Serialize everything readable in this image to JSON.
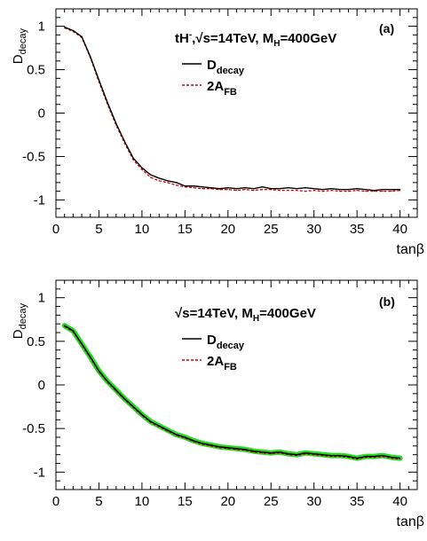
{
  "chart_data": [
    {
      "type": "line",
      "panel_label": "(a)",
      "annotation": {
        "main": "tH",
        "sup": "-",
        "mid": ",√s=14TeV, M",
        "sub": "H",
        "tail": "=400GeV"
      },
      "ylabel": {
        "main": "D",
        "sub": "decay"
      },
      "xlabel": "tanβ",
      "xlim": [
        0,
        42
      ],
      "ylim": [
        -1.2,
        1.2
      ],
      "xticks": [
        0,
        5,
        10,
        15,
        20,
        25,
        30,
        35,
        40
      ],
      "xtick_labels": [
        "0",
        "5",
        "10",
        "15",
        "20",
        "25",
        "30",
        "35",
        "40"
      ],
      "yticks": [
        1,
        0.5,
        0,
        -0.5,
        -1
      ],
      "ytick_labels": [
        "1",
        "0.5",
        "0",
        "-0.5",
        "-1"
      ],
      "legend": [
        {
          "main": "D",
          "sub": "decay",
          "style": "solid",
          "color": "#000000"
        },
        {
          "main": "2A",
          "sub": "FB",
          "style": "dashed",
          "color": "#cc0000"
        }
      ],
      "x": [
        1,
        2,
        3,
        4,
        5,
        6,
        7,
        8,
        9,
        10,
        11,
        12,
        13,
        14,
        15,
        16,
        17,
        18,
        19,
        20,
        21,
        22,
        23,
        24,
        25,
        26,
        27,
        28,
        29,
        30,
        31,
        32,
        33,
        34,
        35,
        36,
        37,
        38,
        39,
        40
      ],
      "series": [
        {
          "style": "solid",
          "color": "#000000",
          "values": [
            0.99,
            0.95,
            0.88,
            0.65,
            0.38,
            0.12,
            -0.12,
            -0.33,
            -0.52,
            -0.63,
            -0.71,
            -0.75,
            -0.78,
            -0.8,
            -0.84,
            -0.84,
            -0.85,
            -0.86,
            -0.87,
            -0.86,
            -0.87,
            -0.86,
            -0.87,
            -0.85,
            -0.87,
            -0.87,
            -0.86,
            -0.87,
            -0.86,
            -0.87,
            -0.88,
            -0.87,
            -0.88,
            -0.88,
            -0.87,
            -0.88,
            -0.89,
            -0.88,
            -0.88,
            -0.88
          ]
        },
        {
          "style": "dashed",
          "color": "#cc0000",
          "values": [
            0.98,
            0.94,
            0.87,
            0.64,
            0.36,
            0.1,
            -0.14,
            -0.35,
            -0.54,
            -0.65,
            -0.74,
            -0.78,
            -0.8,
            -0.83,
            -0.85,
            -0.86,
            -0.87,
            -0.87,
            -0.88,
            -0.88,
            -0.89,
            -0.88,
            -0.89,
            -0.88,
            -0.88,
            -0.89,
            -0.89,
            -0.89,
            -0.9,
            -0.89,
            -0.9,
            -0.89,
            -0.9,
            -0.9,
            -0.89,
            -0.9,
            -0.9,
            -0.9,
            -0.9,
            -0.89
          ]
        }
      ]
    },
    {
      "type": "line",
      "panel_label": "(b)",
      "annotation": {
        "main": "",
        "sup": "",
        "mid": "√s=14TeV, M",
        "sub": "H",
        "tail": "=400GeV"
      },
      "ylabel": {
        "main": "D",
        "sub": "decay"
      },
      "xlabel": "tanβ",
      "xlim": [
        0,
        42
      ],
      "ylim": [
        -1.2,
        1.2
      ],
      "xticks": [
        0,
        5,
        10,
        15,
        20,
        25,
        30,
        35,
        40
      ],
      "xtick_labels": [
        "0",
        "5",
        "10",
        "15",
        "20",
        "25",
        "30",
        "35",
        "40"
      ],
      "yticks": [
        1,
        0.5,
        0,
        -0.5,
        -1
      ],
      "ytick_labels": [
        "1",
        "0.5",
        "0",
        "-0.5",
        "-1"
      ],
      "legend": [
        {
          "main": "D",
          "sub": "decay",
          "style": "solid",
          "color": "#000000"
        },
        {
          "main": "2A",
          "sub": "FB",
          "style": "dashed",
          "color": "#cc0000"
        }
      ],
      "band_color": "#22dd22",
      "x": [
        1,
        2,
        3,
        4,
        5,
        6,
        7,
        8,
        9,
        10,
        11,
        12,
        13,
        14,
        15,
        16,
        17,
        18,
        19,
        20,
        21,
        22,
        23,
        24,
        25,
        26,
        27,
        28,
        29,
        30,
        31,
        32,
        33,
        34,
        35,
        36,
        37,
        38,
        39,
        40
      ],
      "series": [
        {
          "style": "solid",
          "color": "#000000",
          "values": [
            0.68,
            0.62,
            0.47,
            0.32,
            0.16,
            0.04,
            -0.06,
            -0.16,
            -0.25,
            -0.34,
            -0.42,
            -0.47,
            -0.52,
            -0.57,
            -0.6,
            -0.64,
            -0.67,
            -0.69,
            -0.71,
            -0.72,
            -0.73,
            -0.74,
            -0.76,
            -0.77,
            -0.78,
            -0.77,
            -0.79,
            -0.8,
            -0.78,
            -0.79,
            -0.8,
            -0.81,
            -0.81,
            -0.82,
            -0.84,
            -0.82,
            -0.82,
            -0.81,
            -0.83,
            -0.84
          ]
        },
        {
          "style": "dashed",
          "color": "#cc0000",
          "values": [
            0.67,
            0.61,
            0.46,
            0.31,
            0.15,
            0.03,
            -0.07,
            -0.17,
            -0.26,
            -0.35,
            -0.43,
            -0.48,
            -0.53,
            -0.58,
            -0.61,
            -0.65,
            -0.68,
            -0.7,
            -0.72,
            -0.73,
            -0.74,
            -0.75,
            -0.77,
            -0.78,
            -0.79,
            -0.78,
            -0.8,
            -0.81,
            -0.79,
            -0.8,
            -0.81,
            -0.82,
            -0.82,
            -0.83,
            -0.85,
            -0.83,
            -0.83,
            -0.82,
            -0.84,
            -0.85
          ]
        }
      ]
    }
  ]
}
